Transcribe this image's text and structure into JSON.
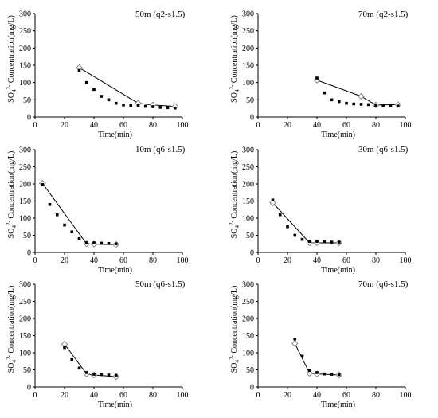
{
  "chart_data": [
    {
      "type": "scatter",
      "title": "50m (q2-s1.5)",
      "xlabel": "Time(min)",
      "ylabel_prefix": "SO",
      "ylabel_sub": "4",
      "ylabel_sup": "2-",
      "ylabel_rest": " Concentration(mg/L)",
      "xlim": [
        0,
        100
      ],
      "ylim": [
        0,
        300
      ],
      "xticks": [
        0,
        20,
        40,
        60,
        80,
        100
      ],
      "yticks": [
        0,
        50,
        100,
        150,
        200,
        250,
        300
      ],
      "measured": {
        "x": [
          30,
          35,
          40,
          45,
          50,
          55,
          60,
          65,
          70,
          75,
          80,
          85,
          90,
          95
        ],
        "y": [
          135,
          100,
          80,
          60,
          50,
          40,
          35,
          34,
          33,
          31,
          30,
          28,
          27,
          26
        ]
      },
      "simulated": {
        "x": [
          30,
          70,
          80,
          95
        ],
        "y": [
          143,
          40,
          35,
          31
        ]
      }
    },
    {
      "type": "scatter",
      "title": "70m (q2-s1.5)",
      "xlabel": "Time(min)",
      "ylabel_prefix": "SO",
      "ylabel_sub": "4",
      "ylabel_sup": "2-",
      "ylabel_rest": " Concentration(mg/L)",
      "xlim": [
        0,
        100
      ],
      "ylim": [
        0,
        300
      ],
      "xticks": [
        0,
        20,
        40,
        60,
        80,
        100
      ],
      "yticks": [
        0,
        50,
        100,
        150,
        200,
        250,
        300
      ],
      "measured": {
        "x": [
          40,
          45,
          50,
          55,
          60,
          65,
          70,
          75,
          80,
          85,
          90,
          95
        ],
        "y": [
          113,
          70,
          50,
          45,
          40,
          38,
          37,
          36,
          34,
          34,
          33,
          32
        ]
      },
      "simulated": {
        "x": [
          40,
          70,
          80,
          95
        ],
        "y": [
          107,
          60,
          35,
          36
        ]
      }
    },
    {
      "type": "scatter",
      "title": "10m (q6-s1.5)",
      "xlabel": "Time(min)",
      "ylabel_prefix": "SO",
      "ylabel_sub": "4",
      "ylabel_sup": "2-",
      "ylabel_rest": " Concentration(mg/L)",
      "xlim": [
        0,
        100
      ],
      "ylim": [
        0,
        300
      ],
      "xticks": [
        0,
        20,
        40,
        60,
        80,
        100
      ],
      "yticks": [
        0,
        50,
        100,
        150,
        200,
        250,
        300
      ],
      "measured": {
        "x": [
          5,
          10,
          15,
          20,
          25,
          30,
          35,
          40,
          45,
          50,
          55
        ],
        "y": [
          198,
          140,
          110,
          80,
          60,
          40,
          28,
          28,
          27,
          26,
          25
        ]
      },
      "simulated": {
        "x": [
          5,
          35,
          40,
          55
        ],
        "y": [
          202,
          25,
          24,
          23
        ]
      }
    },
    {
      "type": "scatter",
      "title": "30m (q6-s1.5)",
      "xlabel": "Time(min)",
      "ylabel_prefix": "SO",
      "ylabel_sub": "4",
      "ylabel_sup": "2-",
      "ylabel_rest": " Concentration(mg/L)",
      "xlim": [
        0,
        100
      ],
      "ylim": [
        0,
        300
      ],
      "xticks": [
        0,
        20,
        40,
        60,
        80,
        100
      ],
      "yticks": [
        0,
        50,
        100,
        150,
        200,
        250,
        300
      ],
      "measured": {
        "x": [
          10,
          15,
          20,
          25,
          30,
          35,
          40,
          45,
          50,
          55
        ],
        "y": [
          153,
          110,
          75,
          50,
          38,
          32,
          32,
          31,
          30,
          30
        ]
      },
      "simulated": {
        "x": [
          10,
          35,
          40,
          55
        ],
        "y": [
          145,
          28,
          28,
          28
        ]
      }
    },
    {
      "type": "scatter",
      "title": "50m (q6-s1.5)",
      "xlabel": "Time(min)",
      "ylabel_prefix": "SO",
      "ylabel_sub": "4",
      "ylabel_sup": "2-",
      "ylabel_rest": " Concentration(mg/L)",
      "xlim": [
        0,
        100
      ],
      "ylim": [
        0,
        300
      ],
      "xticks": [
        0,
        20,
        40,
        60,
        80,
        100
      ],
      "yticks": [
        0,
        50,
        100,
        150,
        200,
        250,
        300
      ],
      "measured": {
        "x": [
          20,
          25,
          30,
          35,
          40,
          45,
          50,
          55
        ],
        "y": [
          115,
          80,
          55,
          42,
          37,
          36,
          35,
          34
        ]
      },
      "simulated": {
        "x": [
          20,
          35,
          40,
          55
        ],
        "y": [
          125,
          38,
          35,
          30
        ]
      }
    },
    {
      "type": "scatter",
      "title": "70m (q6-s1.5)",
      "xlabel": "Time(min)",
      "ylabel_prefix": "SO",
      "ylabel_sub": "4",
      "ylabel_sup": "2-",
      "ylabel_rest": " Concentration(mg/L)",
      "xlim": [
        0,
        100
      ],
      "ylim": [
        0,
        300
      ],
      "xticks": [
        0,
        20,
        40,
        60,
        80,
        100
      ],
      "yticks": [
        0,
        50,
        100,
        150,
        200,
        250,
        300
      ],
      "measured": {
        "x": [
          25,
          30,
          35,
          40,
          45,
          50,
          55
        ],
        "y": [
          140,
          90,
          48,
          42,
          38,
          37,
          36
        ]
      },
      "simulated": {
        "x": [
          25,
          35,
          40,
          55
        ],
        "y": [
          127,
          40,
          38,
          35
        ]
      }
    }
  ]
}
